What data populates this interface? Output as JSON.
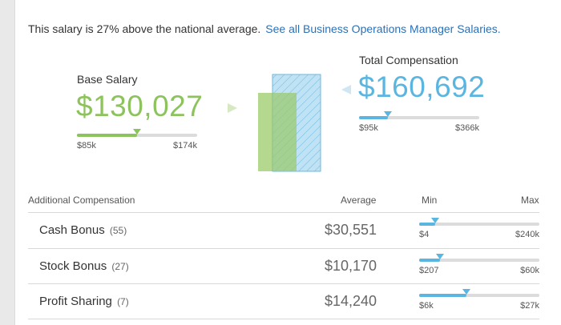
{
  "intro": {
    "text": "This salary is 27% above the national average.",
    "link": "See all Business Operations Manager Salaries."
  },
  "base": {
    "label": "Base Salary",
    "value": "$130,027",
    "range_min": "$85k",
    "range_max": "$174k",
    "position": 0.5,
    "color": "#8dc35c"
  },
  "total": {
    "label": "Total Compensation",
    "value": "$160,692",
    "range_min": "$95k",
    "range_max": "$366k",
    "position": 0.24,
    "color": "#5ab6e0"
  },
  "additional": {
    "header": {
      "label": "Additional Compensation",
      "average": "Average",
      "min": "Min",
      "max": "Max"
    },
    "rows": [
      {
        "name": "Cash Bonus",
        "count": "(55)",
        "average": "$30,551",
        "min": "$4",
        "max": "$240k",
        "position": 0.13
      },
      {
        "name": "Stock Bonus",
        "count": "(27)",
        "average": "$10,170",
        "min": "$207",
        "max": "$60k",
        "position": 0.17
      },
      {
        "name": "Profit Sharing",
        "count": "(7)",
        "average": "$14,240",
        "min": "$6k",
        "max": "$27k",
        "position": 0.39
      }
    ]
  }
}
